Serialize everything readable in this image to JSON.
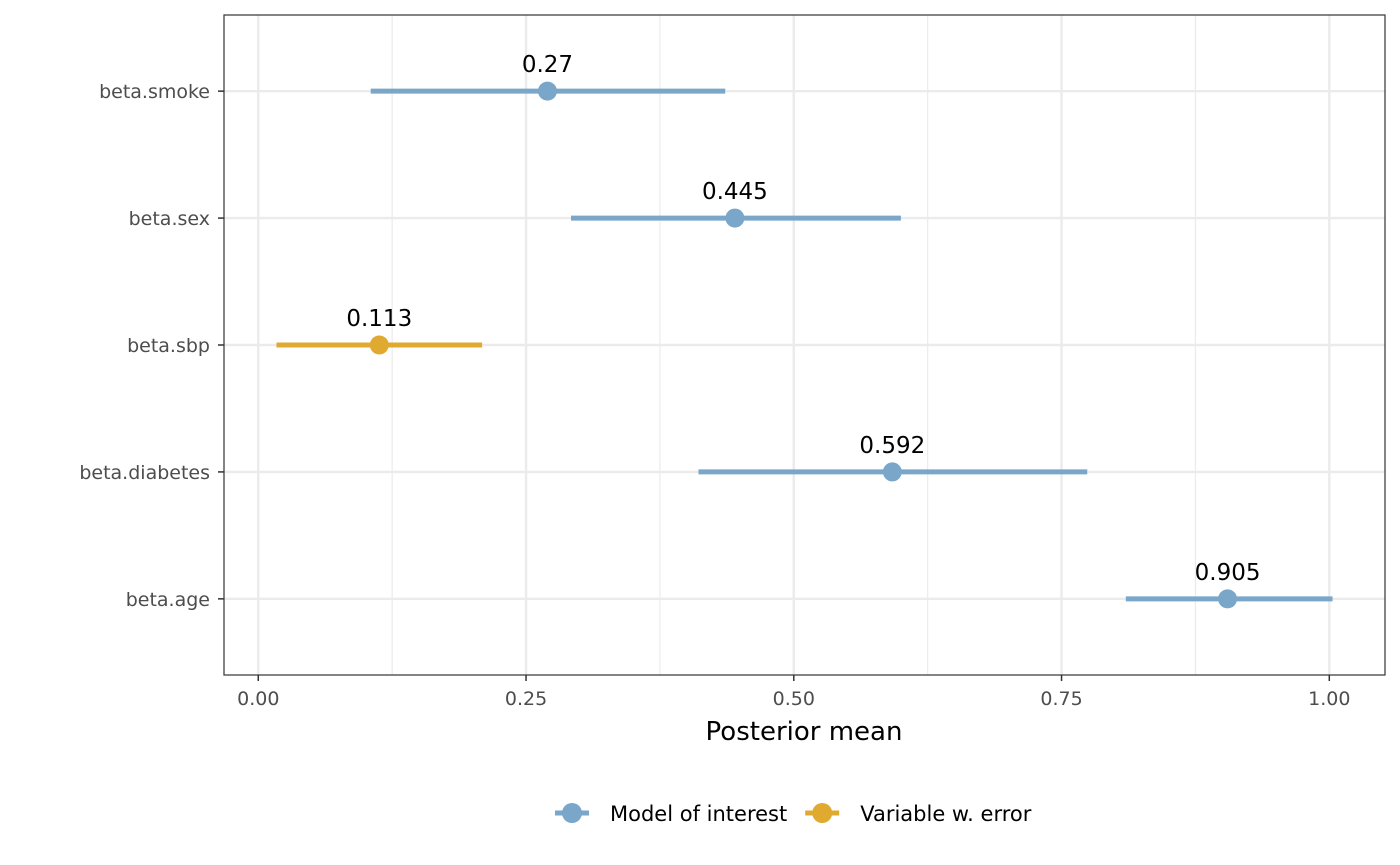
{
  "chart_data": {
    "type": "scatter",
    "xlabel": "Posterior mean",
    "ylabel": "",
    "xlim": [
      -0.032,
      1.052
    ],
    "x_ticks": [
      0,
      0.25,
      0.5,
      0.75,
      1
    ],
    "x_tick_labels": [
      "0.00",
      "0.25",
      "0.50",
      "0.75",
      "1.00"
    ],
    "categories": [
      "beta.smoke",
      "beta.sex",
      "beta.sbp",
      "beta.diabetes",
      "beta.age"
    ],
    "points": [
      {
        "category": "beta.smoke",
        "group": "Model of interest",
        "mean": 0.27,
        "lower": 0.105,
        "upper": 0.436,
        "label": "0.27"
      },
      {
        "category": "beta.sex",
        "group": "Model of interest",
        "mean": 0.445,
        "lower": 0.292,
        "upper": 0.6,
        "label": "0.445"
      },
      {
        "category": "beta.sbp",
        "group": "Variable w. error",
        "mean": 0.113,
        "lower": 0.017,
        "upper": 0.209,
        "label": "0.113"
      },
      {
        "category": "beta.diabetes",
        "group": "Model of interest",
        "mean": 0.592,
        "lower": 0.411,
        "upper": 0.774,
        "label": "0.592"
      },
      {
        "category": "beta.age",
        "group": "Model of interest",
        "mean": 0.905,
        "lower": 0.81,
        "upper": 1.003,
        "label": "0.905"
      }
    ],
    "series": [
      {
        "name": "Model of interest",
        "color": "#79a6c9"
      },
      {
        "name": "Variable w. error",
        "color": "#e0aa31"
      }
    ],
    "grid": true,
    "legend": "bottom"
  }
}
